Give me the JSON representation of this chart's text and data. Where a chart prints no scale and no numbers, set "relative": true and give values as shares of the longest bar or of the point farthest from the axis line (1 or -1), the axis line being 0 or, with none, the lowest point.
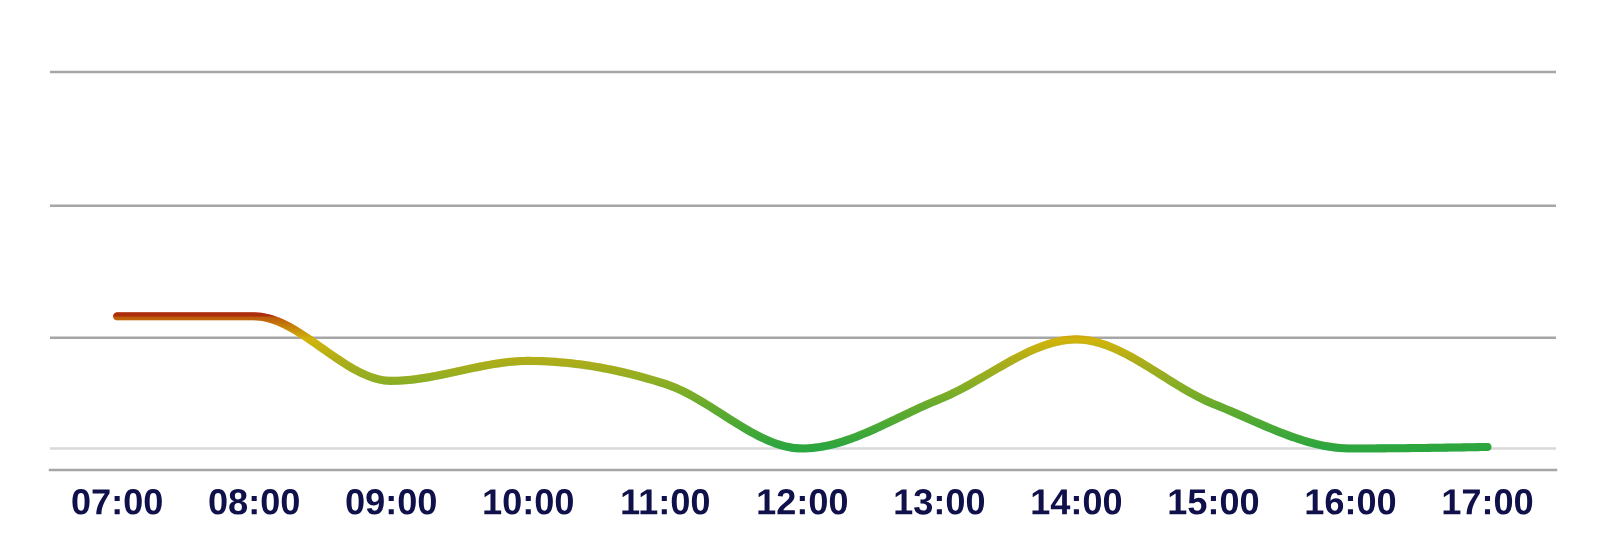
{
  "chart_data": {
    "type": "line",
    "relative": true,
    "categories": [
      "07:00",
      "08:00",
      "09:00",
      "10:00",
      "11:00",
      "12:00",
      "13:00",
      "14:00",
      "15:00",
      "16:00",
      "17:00"
    ],
    "series": [
      {
        "values": [
          1.0,
          1.0,
          0.58,
          0.71,
          0.56,
          0.14,
          0.46,
          0.85,
          0.43,
          0.14,
          0.15
        ],
        "colors": [
          "#d83a00",
          "#c00000",
          "#96b924",
          "#c3b716",
          "#8fb826",
          "#0aad4a",
          "#6fb52d",
          "#f5c100",
          "#60b431",
          "#0aad4a",
          "#0cad49"
        ]
      }
    ],
    "ref_lines": [
      {
        "axis": "y",
        "value": 0.14,
        "color": "#d9d9d9"
      },
      {
        "axis": "y",
        "value": 0.86,
        "color": "#a6a6a6"
      },
      {
        "axis": "y",
        "value": 1.72,
        "color": "#a6a6a6"
      },
      {
        "axis": "y",
        "value": 2.59,
        "color": "#a6a6a6"
      }
    ]
  }
}
